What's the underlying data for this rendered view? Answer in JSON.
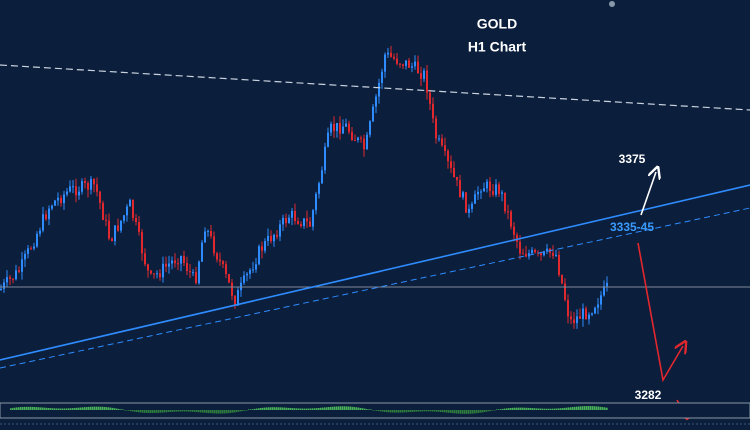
{
  "header": {
    "title": "GOLD",
    "subtitle": "H1 Chart"
  },
  "annotations": {
    "target_up": "3375",
    "resistance": "3335-45",
    "target_down": "3282"
  }
}
